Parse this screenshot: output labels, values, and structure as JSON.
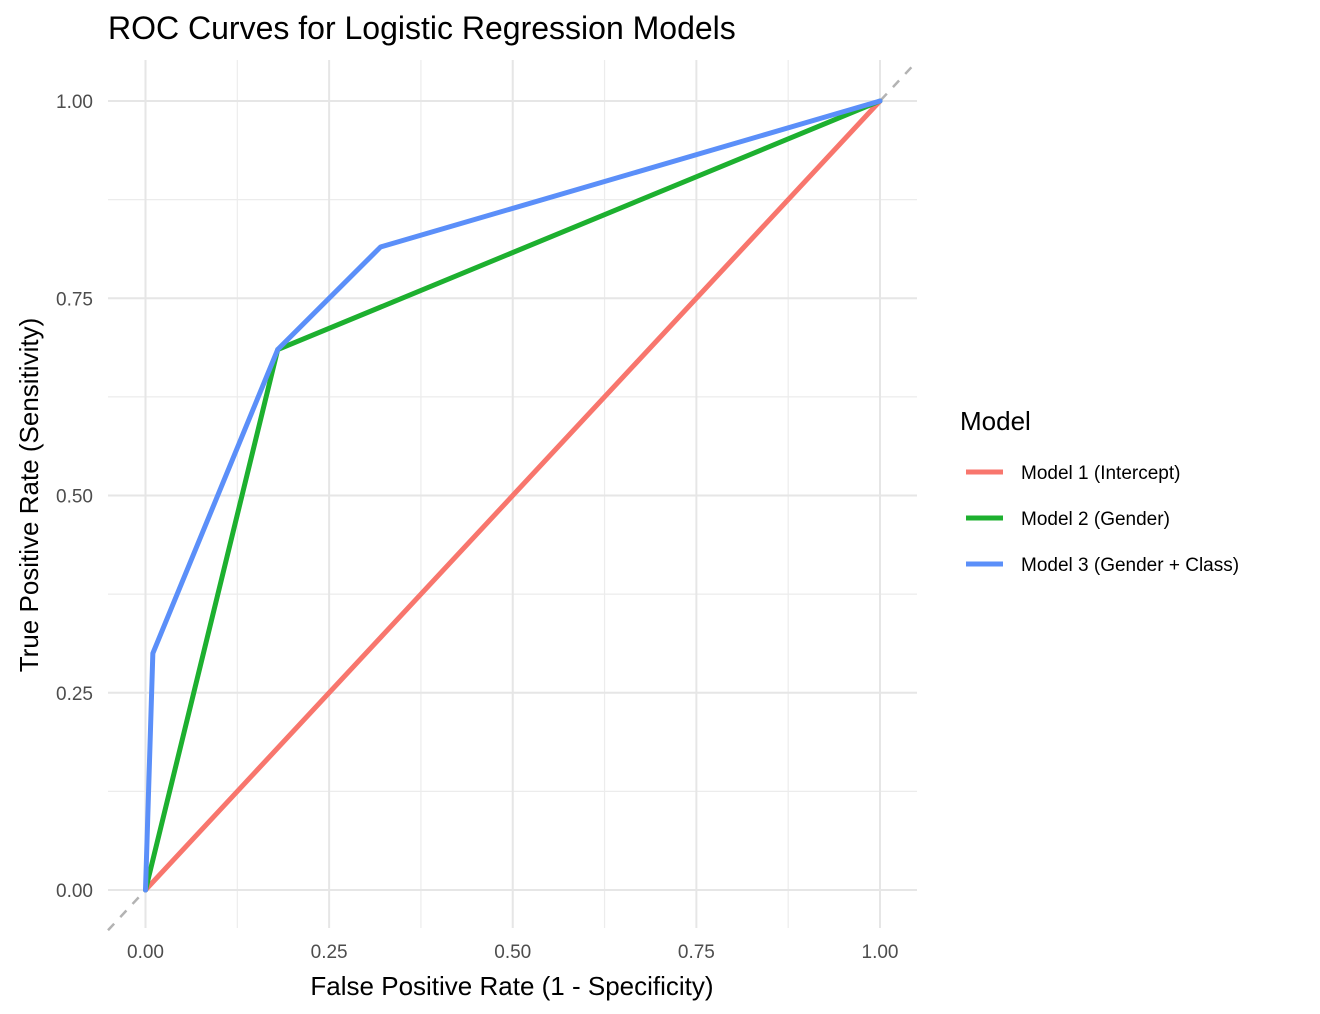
{
  "chart_data": {
    "type": "line",
    "title": "ROC Curves for Logistic Regression Models",
    "xlabel": "False Positive Rate (1 - Specificity)",
    "ylabel": "True Positive Rate (Sensitivity)",
    "xlim": [
      0,
      1
    ],
    "ylim": [
      0,
      1
    ],
    "xticks": [
      "0.00",
      "0.25",
      "0.50",
      "0.75",
      "1.00"
    ],
    "yticks": [
      "0.00",
      "0.25",
      "0.50",
      "0.75",
      "1.00"
    ],
    "grid": true,
    "legend": {
      "title": "Model",
      "position": "right"
    },
    "reference_line": {
      "type": "diagonal",
      "style": "dashed",
      "color": "#b3b3b3"
    },
    "series": [
      {
        "name": "Model 1 (Intercept)",
        "color": "#F8766D",
        "x": [
          0,
          1
        ],
        "y": [
          0,
          1
        ]
      },
      {
        "name": "Model 2 (Gender)",
        "color": "#1DB02F",
        "x": [
          0,
          0.18,
          1
        ],
        "y": [
          0,
          0.685,
          1
        ]
      },
      {
        "name": "Model 3 (Gender + Class)",
        "color": "#5B8FF9",
        "x": [
          0,
          0.01,
          0.18,
          0.32,
          1
        ],
        "y": [
          0,
          0.3,
          0.685,
          0.815,
          1
        ]
      }
    ]
  }
}
